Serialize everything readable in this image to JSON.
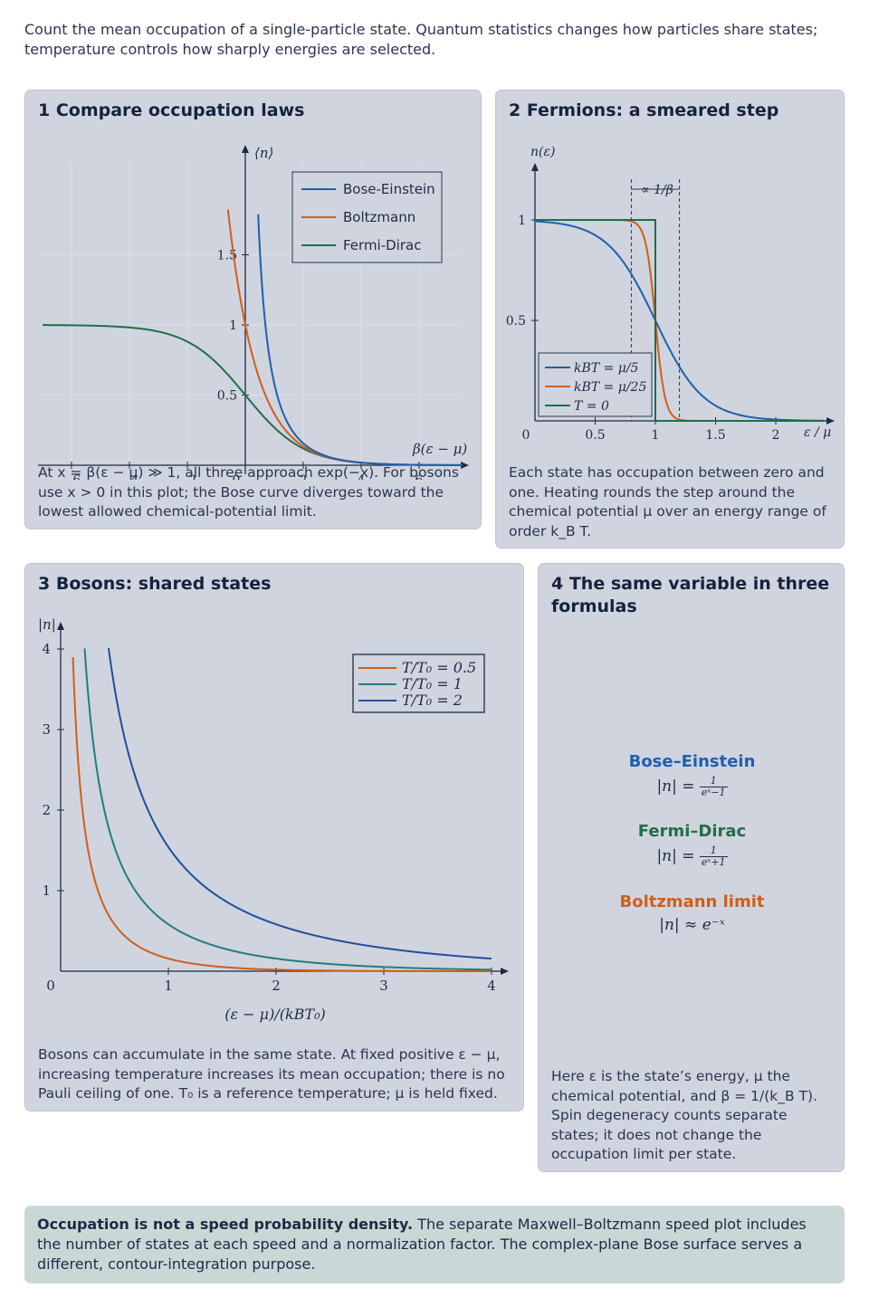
{
  "intro": "Count the mean occupation of a single-particle state. Quantum statistics changes how particles share states; temperature controls how sharply energies are selected.",
  "panel1": {
    "title": "1 Compare occupation laws",
    "caption_lines": [
      "At x = β(ε − μ) ≫ 1, all three approach exp(−x). For bosons",
      "use x > 0 in this plot; the Bose curve diverges toward the",
      "lowest allowed chemical-potential limit."
    ],
    "chart_data": {
      "type": "line",
      "xlabel": "β(ε − μ)",
      "ylabel": "⟨n⟩",
      "xlim": [
        -7,
        7.5
      ],
      "ylim": [
        -0.05,
        1.9
      ],
      "xticks": [
        "−6",
        "−4",
        "−2",
        "0",
        "2",
        "4",
        "6"
      ],
      "yticks": [
        "0.5",
        "1",
        "1.5"
      ],
      "legend": [
        "Bose-Einstein",
        "Boltzmann",
        "Fermi-Dirac"
      ],
      "legend_position": "top-right",
      "colors": {
        "bose": "#1f5fb0",
        "boltzmann": "#cf5f1a",
        "fermi": "#1f6f47"
      }
    }
  },
  "panel2": {
    "title": "2 Fermions: a smeared step",
    "caption_lines": [
      "Each state has occupation between zero and",
      "one. Heating rounds the step around the",
      "chemical potential μ over an energy range of",
      "order k_B T."
    ],
    "chart_data": {
      "type": "line",
      "xlabel": "ε / μ",
      "ylabel": "n(ε)",
      "xlim": [
        0,
        2.4
      ],
      "ylim": [
        0,
        1.2
      ],
      "xticks": [
        "0",
        "0.5",
        "1",
        "1.5",
        "2"
      ],
      "yticks": [
        "0.5",
        "1"
      ],
      "annotation": "∝ 1/β",
      "legend": [
        "kBT = μ/5",
        "kBT = μ/25",
        "T = 0"
      ],
      "legend_position": "bottom-left",
      "colors": {
        "t5": "#1f5fb0",
        "t25": "#cf5f1a",
        "t0": "#1f6f47"
      }
    }
  },
  "panel3": {
    "title": "3 Bosons: shared states",
    "caption_lines": [
      "Bosons can accumulate in the same state. At fixed positive ε − μ,",
      "increasing temperature increases its mean occupation; there is no",
      "Pauli ceiling of one. T₀ is a reference temperature; μ is held fixed."
    ],
    "chart_data": {
      "type": "line",
      "xlabel": "(ε − μ)/(kBT₀)",
      "ylabel": "|n|",
      "xlim": [
        0,
        4.2
      ],
      "ylim": [
        0,
        4.2
      ],
      "xticks": [
        "0",
        "1",
        "2",
        "3",
        "4"
      ],
      "yticks": [
        "1",
        "2",
        "3",
        "4"
      ],
      "series": [
        {
          "name": "T/T₀ = 0.5",
          "t": 0.5,
          "color": "#cf5f1a"
        },
        {
          "name": "T/T₀ = 1",
          "t": 1,
          "color": "#1f7f80"
        },
        {
          "name": "T/T₀ = 2",
          "t": 2,
          "color": "#1f4fa0"
        }
      ],
      "legend_position": "top-right"
    }
  },
  "panel4": {
    "title_lines": [
      "4 The same variable in three",
      "formulas"
    ],
    "formulas": [
      {
        "name": "Bose–Einstein",
        "color": "#1f5fb0",
        "lhs": "|n| = ",
        "num": "1",
        "den": "eˣ−1"
      },
      {
        "name": "Fermi–Dirac",
        "color": "#1f6f47",
        "lhs": "|n| = ",
        "num": "1",
        "den": "eˣ+1"
      },
      {
        "name": "Boltzmann limit",
        "color": "#cf5f1a",
        "expr": "|n| ≈ e⁻ˣ"
      }
    ],
    "caption_lines": [
      "Here ε is the state’s energy, μ the",
      "chemical potential, and β = 1/(k_B T).",
      "Spin degeneracy counts separate",
      "states; it does not change the",
      "occupation limit per state."
    ]
  },
  "note": {
    "bold": "Occupation is not a speed probability density.",
    "text": " The separate Maxwell–Boltzmann speed plot includes the number of states at each speed and a normalization factor. The complex-plane Bose surface serves a different, contour-integration purpose."
  }
}
